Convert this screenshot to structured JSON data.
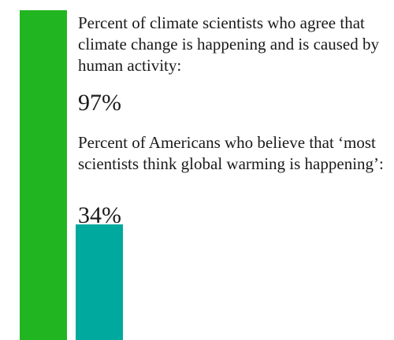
{
  "chart_data": {
    "type": "bar",
    "categories": [
      "Percent of climate scientists who agree that climate change is happening and is caused by human activity:",
      "Percent of Americans who believe that ‘most scientists think global warming is happening’:"
    ],
    "values": [
      97,
      34
    ],
    "value_labels": [
      "97%",
      "34%"
    ],
    "ylim": [
      0,
      100
    ],
    "colors": [
      "#22b522",
      "#00a99d"
    ],
    "grid": false,
    "legend": "none"
  }
}
